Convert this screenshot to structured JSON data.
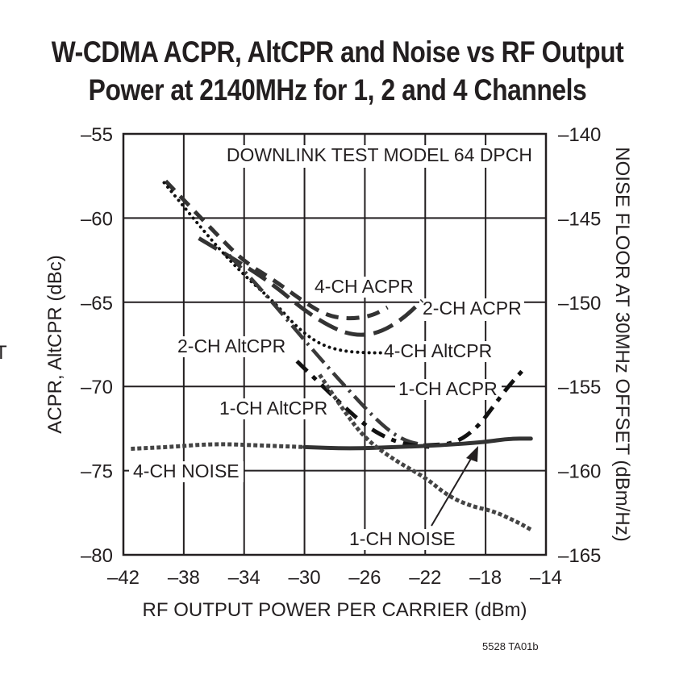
{
  "title_line1": "W-CDMA ACPR, AltCPR and Noise vs RF Output",
  "title_line2": "Power at 2140MHz for 1, 2 and 4 Channels",
  "figure_id": "5528 TA01b",
  "stray_glyph": "T",
  "chart_data": {
    "type": "line",
    "title": "W-CDMA ACPR, AltCPR and Noise vs RF Output Power at 2140MHz for 1, 2 and 4 Channels",
    "xlabel": "RF OUTPUT POWER PER CARRIER (dBm)",
    "ylabel": "ACPR, AltCPR (dBc)",
    "y2label": "NOISE FLOOR AT 30MHz OFFSET (dBm/Hz)",
    "xlim": [
      -42,
      -14
    ],
    "ylim": [
      -80,
      -55
    ],
    "y2lim": [
      -165,
      -140
    ],
    "xticks": [
      "-42",
      "-38",
      "-34",
      "-30",
      "-26",
      "-22",
      "-18",
      "-14"
    ],
    "yticks": [
      "-55",
      "-60",
      "-65",
      "-70",
      "-75",
      "-80"
    ],
    "y2ticks": [
      "-140",
      "-145",
      "-150",
      "-155",
      "-160",
      "-165"
    ],
    "grid": true,
    "annotation": "DOWNLINK TEST MODEL 64 DPCH",
    "series": [
      {
        "name": "4-CH ACPR",
        "axis": "left",
        "style": "dashed",
        "x": [
          -39.2,
          -36,
          -34,
          -32,
          -30,
          -28.5,
          -27,
          -25.5,
          -24.5
        ],
        "y": [
          -57.8,
          -60.8,
          -62.6,
          -63.7,
          -65.0,
          -65.8,
          -66.0,
          -65.8,
          -65.3
        ]
      },
      {
        "name": "2-CH ACPR",
        "axis": "left",
        "style": "long-dashed",
        "x": [
          -37,
          -34,
          -32,
          -30,
          -28,
          -26.5,
          -25,
          -23.5,
          -22.2
        ],
        "y": [
          -61.2,
          -62.8,
          -64.0,
          -65.5,
          -66.6,
          -67.0,
          -66.8,
          -66.0,
          -64.9
        ]
      },
      {
        "name": "4-CH AltCPR",
        "axis": "left",
        "style": "dotted",
        "x": [
          -39.3,
          -36,
          -34,
          -32,
          -30.5,
          -29,
          -27.5,
          -26,
          -24.8
        ],
        "y": [
          -57.9,
          -61.5,
          -63.4,
          -65.0,
          -66.5,
          -67.5,
          -67.9,
          -68.0,
          -68.0
        ]
      },
      {
        "name": "2-CH AltCPR",
        "axis": "left",
        "style": "dash-dot",
        "x": [
          -35,
          -33,
          -31,
          -29,
          -27,
          -25,
          -23.5,
          -22
        ],
        "y": [
          -62.2,
          -64.1,
          -66.2,
          -68.3,
          -70.3,
          -72.2,
          -73.2,
          -73.5
        ]
      },
      {
        "name": "1-CH AltCPR",
        "axis": "left",
        "style": "heavy-dashed",
        "x": [
          -30.5,
          -29,
          -27.5,
          -26,
          -24.5,
          -23,
          -21.5
        ],
        "y": [
          -68.5,
          -69.8,
          -71.1,
          -72.3,
          -73.1,
          -73.5,
          -73.6
        ]
      },
      {
        "name": "1-CH ACPR",
        "axis": "left",
        "style": "dash-dot-heavy",
        "x": [
          -22,
          -20,
          -18.5,
          -17.5,
          -16.5,
          -15.5
        ],
        "y": [
          -73.5,
          -73.4,
          -72.4,
          -71.2,
          -70.0,
          -69.0
        ]
      },
      {
        "name": "4-CH NOISE",
        "axis": "right",
        "style": "square-dotted",
        "x": [
          -41.5,
          -39,
          -36,
          -33,
          -30
        ],
        "y": [
          -158.7,
          -158.6,
          -158.4,
          -158.5,
          -158.6
        ]
      },
      {
        "name": "1-CH NOISE (solid)",
        "axis": "right",
        "style": "solid",
        "x": [
          -30,
          -27,
          -24,
          -21,
          -18,
          -16.5,
          -15
        ],
        "y": [
          -158.6,
          -158.7,
          -158.6,
          -158.5,
          -158.3,
          -158.1,
          -158.1
        ]
      },
      {
        "name": "1-CH NOISE",
        "axis": "right",
        "style": "square-dotted",
        "x": [
          -29,
          -27.5,
          -26,
          -24,
          -22,
          -20.5,
          -19,
          -17.5,
          -16,
          -15
        ],
        "y": [
          -154.3,
          -156.3,
          -158.1,
          -159.4,
          -160.4,
          -161.5,
          -162.1,
          -162.4,
          -163.0,
          -163.5
        ]
      }
    ],
    "labels": [
      {
        "text": "4-CH ACPR"
      },
      {
        "text": "2-CH ACPR"
      },
      {
        "text": "4-CH AltCPR"
      },
      {
        "text": "2-CH AltCPR"
      },
      {
        "text": "1-CH ACPR"
      },
      {
        "text": "1-CH AltCPR"
      },
      {
        "text": "4-CH NOISE"
      },
      {
        "text": "1-CH NOISE"
      }
    ]
  }
}
